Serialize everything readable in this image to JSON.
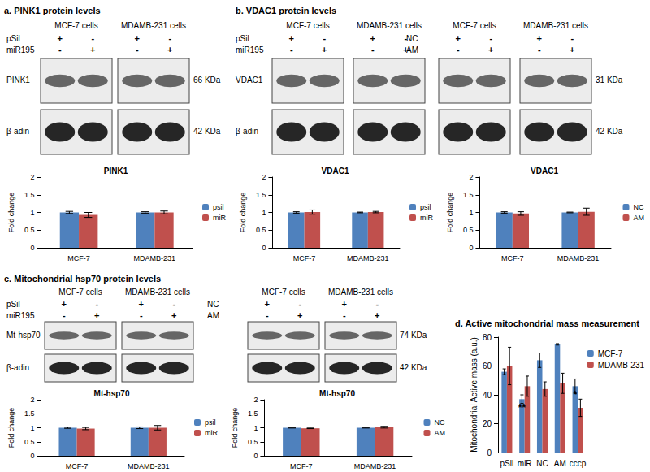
{
  "figure": {
    "panels": [
      {
        "title": "a. PINK1 protein levels",
        "sets": [
          {
            "cells": [
              "MCF-7 cells",
              "MDAMB-231 cells"
            ],
            "conditions": [
              {
                "name": "pSil",
                "marks": [
                  "+",
                  "-"
                ]
              },
              {
                "name": "miR195",
                "marks": [
                  "-",
                  "+"
                ]
              }
            ]
          }
        ],
        "rows": [
          {
            "protein": "PINK1",
            "size": "66 KDa"
          },
          {
            "protein": "β-adin",
            "size": "42 KDa"
          }
        ]
      },
      {
        "title": "b. VDAC1 protein levels",
        "sets": [
          {
            "cells": [
              "MCF-7 cells",
              "MDAMB-231 cells"
            ],
            "conditions": [
              {
                "name": "pSil",
                "marks": [
                  "+",
                  "-"
                ]
              },
              {
                "name": "miR195",
                "marks": [
                  "-",
                  "+"
                ]
              }
            ]
          },
          {
            "cells": [
              "MCF-7 cells",
              "MDAMB-231 cells"
            ],
            "conditions": [
              {
                "name": "NC",
                "marks": [
                  "+",
                  "-"
                ]
              },
              {
                "name": "AM",
                "marks": [
                  "-",
                  "+"
                ]
              }
            ]
          }
        ],
        "rows": [
          {
            "protein": "VDAC1",
            "size": "31 KDa"
          },
          {
            "protein": "β-adin",
            "size": "42 KDa"
          }
        ]
      },
      {
        "title": "c. Mitochondrial hsp70 protein levels",
        "sets": [
          {
            "cells": [
              "MCF-7 cells",
              "MDAMB-231 cells"
            ],
            "conditions": [
              {
                "name": "pSil",
                "marks": [
                  "+",
                  "-"
                ]
              },
              {
                "name": "miR195",
                "marks": [
                  "-",
                  "+"
                ]
              }
            ]
          },
          {
            "cells": [
              "MCF-7 cells",
              "MDAMB-231 cells"
            ],
            "conditions": [
              {
                "name": "NC",
                "marks": [
                  "+",
                  "-"
                ]
              },
              {
                "name": "AM",
                "marks": [
                  "-",
                  "+"
                ]
              }
            ]
          }
        ],
        "rows": [
          {
            "protein": "Mt-hsp70",
            "size": "74 KDa"
          },
          {
            "protein": "β-adin",
            "size": "42 KDa"
          }
        ]
      }
    ]
  },
  "chart_data": [
    {
      "type": "bar",
      "title": "PINK1",
      "categories": [
        "MCF-7",
        "MDAMB-231"
      ],
      "series": [
        {
          "name": "psil",
          "color": "#4f81bd",
          "values": [
            1,
            1
          ],
          "errors": [
            0.03,
            0.02
          ]
        },
        {
          "name": "miR",
          "color": "#c0504d",
          "values": [
            0.93,
            1.0
          ],
          "errors": [
            0.07,
            0.04
          ]
        }
      ],
      "ylim": [
        0,
        2
      ],
      "yticks": [
        0,
        0.5,
        1,
        1.5,
        2
      ],
      "ylabel": "Fold change",
      "legend": "right",
      "grid": false
    },
    {
      "type": "bar",
      "title": "VDAC1",
      "categories": [
        "MCF-7",
        "MDAMB-231"
      ],
      "series": [
        {
          "name": "psil",
          "color": "#4f81bd",
          "values": [
            1,
            1
          ],
          "errors": [
            0.02,
            0.01
          ]
        },
        {
          "name": "miR",
          "color": "#c0504d",
          "values": [
            1.01,
            1.01
          ],
          "errors": [
            0.06,
            0.02
          ]
        }
      ],
      "ylim": [
        0,
        2
      ],
      "yticks": [
        0,
        0.5,
        1,
        1.5,
        2
      ],
      "ylabel": "Fold change",
      "legend": "right",
      "grid": false
    },
    {
      "type": "bar",
      "title": "VDAC1",
      "categories": [
        "MCF-7",
        "MDAMB-231"
      ],
      "series": [
        {
          "name": "NC",
          "color": "#4f81bd",
          "values": [
            1,
            1
          ],
          "errors": [
            0.02,
            0.01
          ]
        },
        {
          "name": "AM",
          "color": "#c0504d",
          "values": [
            0.97,
            1.02
          ],
          "errors": [
            0.05,
            0.1
          ]
        }
      ],
      "ylim": [
        0,
        2
      ],
      "yticks": [
        0,
        0.5,
        1,
        1.5,
        2
      ],
      "ylabel": "Fold change",
      "legend": "right",
      "grid": false
    },
    {
      "type": "bar",
      "title": "Mt-hsp70",
      "categories": [
        "MCF-7",
        "MDAMB-231"
      ],
      "series": [
        {
          "name": "psil",
          "color": "#4f81bd",
          "values": [
            1,
            1
          ],
          "errors": [
            0.02,
            0.03
          ]
        },
        {
          "name": "miR",
          "color": "#c0504d",
          "values": [
            0.97,
            1.0
          ],
          "errors": [
            0.04,
            0.08
          ]
        }
      ],
      "ylim": [
        0,
        2
      ],
      "yticks": [
        0,
        0.5,
        1,
        1.5,
        2
      ],
      "ylabel": "Fold change",
      "legend": "right",
      "grid": false
    },
    {
      "type": "bar",
      "title": "Mt-hsp70",
      "categories": [
        "MCF-7",
        "MDAMB-231"
      ],
      "series": [
        {
          "name": "NC",
          "color": "#4f81bd",
          "values": [
            1,
            1
          ],
          "errors": [
            0.01,
            0.01
          ]
        },
        {
          "name": "AM",
          "color": "#c0504d",
          "values": [
            0.98,
            1.02
          ],
          "errors": [
            0.01,
            0.03
          ]
        }
      ],
      "ylim": [
        0,
        2
      ],
      "yticks": [
        0,
        0.5,
        1,
        1.5,
        2
      ],
      "ylabel": "Fold change",
      "legend": "right",
      "grid": false
    },
    {
      "type": "bar",
      "title": "d. Active mitochondrial mass measurement",
      "categories": [
        "pSil",
        "miR",
        "NC",
        "AM",
        "cccp"
      ],
      "series": [
        {
          "name": "MCF-7",
          "color": "#4f81bd",
          "values": [
            56,
            37,
            64,
            75,
            46
          ],
          "errors": [
            2,
            3,
            5,
            0.5,
            5
          ]
        },
        {
          "name": "MDAMB-231",
          "color": "#c0504d",
          "values": [
            60,
            46,
            44,
            48,
            31
          ],
          "errors": [
            13,
            7,
            5,
            7,
            6
          ]
        }
      ],
      "ylim": [
        0,
        80
      ],
      "yticks": [
        0,
        20,
        40,
        60,
        80
      ],
      "ylabel": "Mitochondrial Active mass (a.u.)",
      "legend": "right",
      "grid": false,
      "annotations": [
        {
          "text": "**",
          "series": "MCF-7",
          "category": "miR"
        },
        {
          "text": "*",
          "series": "MCF-7",
          "category": "cccp"
        }
      ]
    }
  ]
}
